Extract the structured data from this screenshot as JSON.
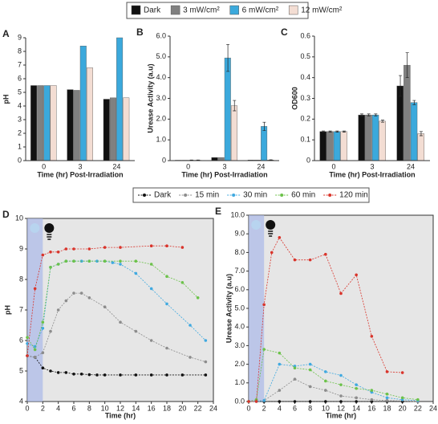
{
  "chart_data": [
    {
      "type": "bar",
      "panel": "A",
      "ylabel": "pH",
      "xlabel": "Time (hr) Post-Irradiation",
      "categories": [
        "0",
        "3",
        "24"
      ],
      "ylim": [
        0,
        9
      ],
      "yticks": [
        0,
        1,
        2,
        3,
        4,
        5,
        6,
        7,
        8,
        9
      ],
      "series": [
        {
          "name": "Dark",
          "color": "#111111",
          "values": [
            5.5,
            5.2,
            4.5
          ]
        },
        {
          "name": "3 mW/cm²",
          "color": "#808080",
          "values": [
            5.5,
            5.15,
            4.6
          ]
        },
        {
          "name": "6 mW/cm²",
          "color": "#3ba9dc",
          "values": [
            5.5,
            8.4,
            9.0
          ]
        },
        {
          "name": "12 mW/cm²",
          "color": "#f3ddd3",
          "values": [
            5.5,
            6.8,
            4.6
          ]
        }
      ]
    },
    {
      "type": "bar",
      "panel": "B",
      "ylabel": "Urease Activity (a.u)",
      "xlabel": "Time (hr) Post-Irradiation",
      "categories": [
        "0",
        "3",
        "24"
      ],
      "ylim": [
        0,
        6
      ],
      "yticks": [
        0,
        {
          "value": 1,
          "label": "1.0"
        },
        {
          "value": 2,
          "label": "2.0"
        },
        {
          "value": 3,
          "label": "3.0"
        },
        {
          "value": 4,
          "label": "4.0"
        },
        {
          "value": 5,
          "label": "5.0"
        },
        {
          "value": 6,
          "label": "6.0"
        }
      ],
      "series": [
        {
          "color": "#111111",
          "values": [
            0.02,
            0.15,
            0.03
          ]
        },
        {
          "color": "#808080",
          "values": [
            0.02,
            0.15,
            0.03
          ]
        },
        {
          "color": "#3ba9dc",
          "values": [
            0.02,
            4.95,
            1.65
          ],
          "errors": [
            0.01,
            0.65,
            0.2
          ]
        },
        {
          "color": "#f3ddd3",
          "values": [
            0.02,
            2.65,
            0.03
          ],
          "errors": [
            0.01,
            0.25,
            0.01
          ]
        }
      ]
    },
    {
      "type": "bar",
      "panel": "C",
      "ylabel": "OD600",
      "xlabel": "Time (hr) Post-Irradiation",
      "categories": [
        "0",
        "3",
        "24"
      ],
      "ylim": [
        0,
        0.6
      ],
      "yticks": [
        0,
        0.1,
        0.2,
        0.3,
        0.4,
        0.5,
        0.6
      ],
      "series": [
        {
          "color": "#111111",
          "values": [
            0.14,
            0.22,
            0.36
          ],
          "errors": [
            0.003,
            0.005,
            0.05
          ]
        },
        {
          "color": "#808080",
          "values": [
            0.14,
            0.22,
            0.46
          ],
          "errors": [
            0.003,
            0.005,
            0.06
          ]
        },
        {
          "color": "#3ba9dc",
          "values": [
            0.14,
            0.22,
            0.28
          ],
          "errors": [
            0.003,
            0.005,
            0.01
          ]
        },
        {
          "color": "#f3ddd3",
          "values": [
            0.14,
            0.19,
            0.13
          ],
          "errors": [
            0.003,
            0.005,
            0.01
          ]
        }
      ]
    },
    {
      "type": "line",
      "panel": "D",
      "ylabel": "pH",
      "xlabel": "Time (hr)",
      "xlim": [
        0,
        24
      ],
      "xticks": [
        0,
        2,
        4,
        6,
        8,
        10,
        12,
        14,
        16,
        18,
        20,
        22,
        24
      ],
      "ylim": [
        4,
        10
      ],
      "yticks": [
        4,
        5,
        6,
        7,
        8,
        9,
        10
      ],
      "shaded_range": [
        0,
        2
      ],
      "series": [
        {
          "name": "Dark",
          "color": "#111111",
          "x": [
            0,
            1,
            2,
            3,
            4,
            5,
            6,
            7,
            8,
            9,
            10,
            12,
            14,
            16,
            18,
            20,
            23
          ],
          "values": [
            5.5,
            5.45,
            5.1,
            5.0,
            4.95,
            4.95,
            4.9,
            4.9,
            4.88,
            4.87,
            4.87,
            4.87,
            4.87,
            4.87,
            4.87,
            4.87,
            4.87
          ]
        },
        {
          "name": "15 min",
          "color": "#8c8c8c",
          "x": [
            0,
            1,
            2,
            3,
            4,
            5,
            6,
            7,
            8,
            10,
            12,
            14,
            16,
            18,
            21,
            23
          ],
          "values": [
            5.5,
            5.45,
            5.6,
            6.3,
            7.0,
            7.3,
            7.55,
            7.55,
            7.4,
            7.1,
            6.6,
            6.3,
            6.0,
            5.75,
            5.45,
            5.3
          ]
        },
        {
          "name": "30 min",
          "color": "#3fa9e0",
          "x": [
            0,
            1,
            2,
            3,
            4,
            5,
            6,
            7,
            8,
            9,
            10,
            11,
            12,
            14,
            16,
            18,
            21,
            23
          ],
          "values": [
            5.9,
            5.8,
            6.4,
            8.4,
            8.5,
            8.6,
            8.6,
            8.6,
            8.6,
            8.6,
            8.6,
            8.55,
            8.5,
            8.2,
            7.7,
            7.2,
            6.5,
            6.0
          ]
        },
        {
          "name": "60 min",
          "color": "#6cc24a",
          "x": [
            0,
            1,
            2,
            3,
            4,
            5,
            6,
            8,
            10,
            12,
            14,
            16,
            18,
            20,
            22
          ],
          "values": [
            6.1,
            5.7,
            6.6,
            8.4,
            8.5,
            8.6,
            8.6,
            8.6,
            8.6,
            8.6,
            8.6,
            8.5,
            8.1,
            7.9,
            7.4
          ]
        },
        {
          "name": "120 min",
          "color": "#d9342b",
          "x": [
            0,
            1,
            2,
            3,
            4,
            5,
            6,
            8,
            10,
            12,
            16,
            18,
            20
          ],
          "values": [
            5.5,
            7.7,
            8.8,
            8.9,
            8.9,
            9.0,
            9.0,
            9.0,
            9.05,
            9.05,
            9.1,
            9.1,
            9.05
          ]
        }
      ]
    },
    {
      "type": "line",
      "panel": "E",
      "ylabel": "Urease Activity (a.u)",
      "xlabel": "Time (hr)",
      "xlim": [
        0,
        24
      ],
      "xticks": [
        0,
        2,
        4,
        6,
        8,
        10,
        12,
        14,
        16,
        18,
        20,
        22,
        24
      ],
      "ylim": [
        0,
        10
      ],
      "yticks": [
        {
          "value": 0,
          "label": "0.0"
        },
        {
          "value": 1,
          "label": "1.0"
        },
        {
          "value": 2,
          "label": "2.0"
        },
        {
          "value": 3,
          "label": "3.0"
        },
        {
          "value": 4,
          "label": "4.0"
        },
        {
          "value": 5,
          "label": "5.0"
        },
        {
          "value": 6,
          "label": "6.0"
        },
        {
          "value": 7,
          "label": "7.0"
        },
        {
          "value": 8,
          "label": "8.0"
        },
        {
          "value": 9,
          "label": "9.0"
        },
        {
          "value": 10,
          "label": "10.0"
        }
      ],
      "shaded_range": [
        0,
        2
      ],
      "series": [
        {
          "color": "#111111",
          "x": [
            0,
            2,
            4,
            6,
            8,
            10,
            12,
            14,
            16,
            18,
            20,
            22
          ],
          "values": [
            0,
            0,
            0,
            0,
            0,
            0,
            0,
            0,
            0,
            0,
            0,
            0
          ]
        },
        {
          "color": "#8c8c8c",
          "x": [
            0,
            2,
            4,
            6,
            8,
            10,
            12,
            14,
            16,
            18,
            22
          ],
          "values": [
            0,
            0.05,
            0.6,
            1.2,
            0.8,
            0.6,
            0.3,
            0.2,
            0.1,
            0.05,
            0
          ]
        },
        {
          "color": "#3fa9e0",
          "x": [
            0,
            1,
            2,
            4,
            6,
            8,
            10,
            12,
            14,
            16,
            18,
            20,
            22
          ],
          "values": [
            0,
            0,
            0.05,
            2.0,
            1.9,
            2.0,
            1.6,
            1.4,
            0.9,
            0.5,
            0.2,
            0.1,
            0.05
          ]
        },
        {
          "color": "#6cc24a",
          "x": [
            0,
            1,
            2,
            4,
            6,
            8,
            10,
            12,
            14,
            16,
            18,
            20,
            22
          ],
          "values": [
            0,
            0.1,
            2.8,
            2.6,
            1.8,
            1.7,
            1.1,
            0.9,
            0.7,
            0.6,
            0.4,
            0.2,
            0.1
          ]
        },
        {
          "color": "#d9342b",
          "x": [
            0,
            1,
            2,
            3,
            4,
            6,
            8,
            10,
            12,
            14,
            16,
            18,
            20
          ],
          "values": [
            0,
            0,
            5.2,
            8.0,
            8.8,
            7.6,
            7.6,
            7.9,
            5.8,
            6.8,
            3.5,
            1.6,
            1.55
          ]
        }
      ]
    }
  ]
}
